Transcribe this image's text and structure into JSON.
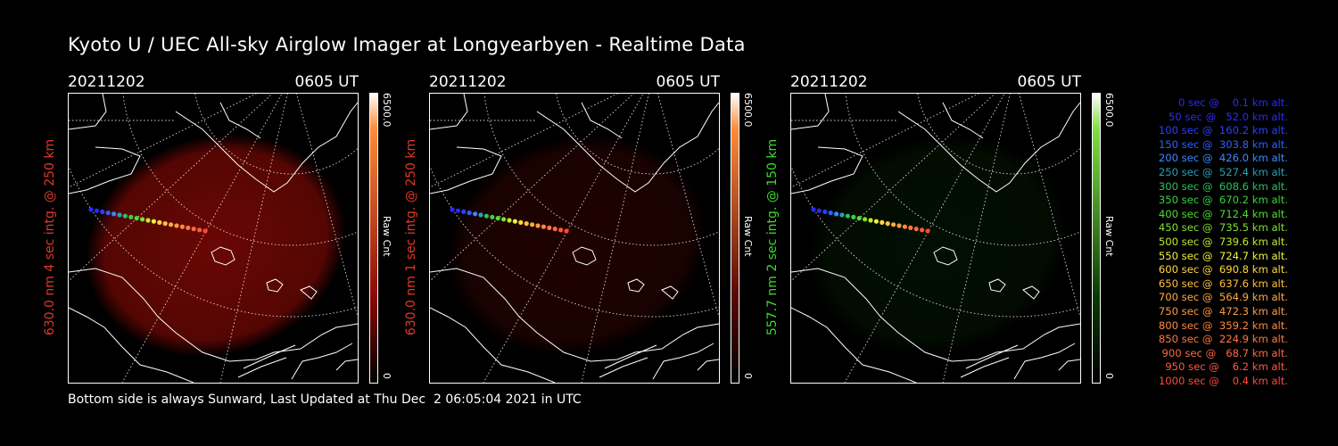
{
  "title": "Kyoto U / UEC All-sky Airglow Imager at Longyearbyen - Realtime Data",
  "panels": [
    {
      "date": "20211202",
      "time": "0605 UT",
      "ylabel": "630.0 nm 4 sec intg. @ 250 km",
      "ylabel_color": "#e0382a",
      "cbar_max": "6500.0",
      "cbar_unit": "Raw Cnt",
      "cbar_min": "0",
      "emission_color": "#8c0a05",
      "emission_strength": 0.75,
      "cbar_top_color": "#ff8c3a"
    },
    {
      "date": "20211202",
      "time": "0605 UT",
      "ylabel": "630.0 nm 1 sec intg. @ 250 km",
      "ylabel_color": "#e0382a",
      "cbar_max": "6500.0",
      "cbar_unit": "Raw Cnt",
      "cbar_min": "0",
      "emission_color": "#5a0704",
      "emission_strength": 0.35,
      "cbar_top_color": "#ff8c3a"
    },
    {
      "date": "20211202",
      "time": "0605 UT",
      "ylabel": "557.7 nm 2 sec intg. @ 150 km",
      "ylabel_color": "#3adc2a",
      "cbar_max": "6500.0",
      "cbar_unit": "Raw Cnt",
      "cbar_min": "0",
      "emission_color": "#0b3a06",
      "emission_strength": 0.25,
      "cbar_top_color": "#7fe040"
    }
  ],
  "legend": [
    {
      "text": "  0 sec @    0.1 km alt.",
      "color": "#2a2aff"
    },
    {
      "text": " 50 sec @   52.0 km alt.",
      "color": "#2a2aff"
    },
    {
      "text": "100 sec @  160.2 km alt.",
      "color": "#2a40ff"
    },
    {
      "text": "150 sec @  303.8 km alt.",
      "color": "#2a60ff"
    },
    {
      "text": "200 sec @  426.0 km alt.",
      "color": "#3a8aff"
    },
    {
      "text": "250 sec @  527.4 km alt.",
      "color": "#2aa0b0"
    },
    {
      "text": "300 sec @  608.6 km alt.",
      "color": "#2ac060"
    },
    {
      "text": "350 sec @  670.2 km alt.",
      "color": "#3ad040"
    },
    {
      "text": "400 sec @  712.4 km alt.",
      "color": "#50dc30"
    },
    {
      "text": "450 sec @  735.5 km alt.",
      "color": "#80e030"
    },
    {
      "text": "500 sec @  739.6 km alt.",
      "color": "#c0e830"
    },
    {
      "text": "550 sec @  724.7 km alt.",
      "color": "#f0f040"
    },
    {
      "text": "600 sec @  690.8 km alt.",
      "color": "#ffd840"
    },
    {
      "text": "650 sec @  637.6 km alt.",
      "color": "#ffc040"
    },
    {
      "text": "700 sec @  564.9 km alt.",
      "color": "#ffaa40"
    },
    {
      "text": "750 sec @  472.3 km alt.",
      "color": "#ff9840"
    },
    {
      "text": "800 sec @  359.2 km alt.",
      "color": "#ff8840"
    },
    {
      "text": "850 sec @  224.9 km alt.",
      "color": "#ff7840"
    },
    {
      "text": "900 sec @   68.7 km alt.",
      "color": "#ff6840"
    },
    {
      "text": "950 sec @    6.2 km alt.",
      "color": "#ff5840"
    },
    {
      "text": "1000 sec @    0.4 km alt.",
      "color": "#ff4838"
    }
  ],
  "footer": "Bottom side is always Sunward, Last Updated at Thu Dec  2 06:05:04 2021 in UTC"
}
